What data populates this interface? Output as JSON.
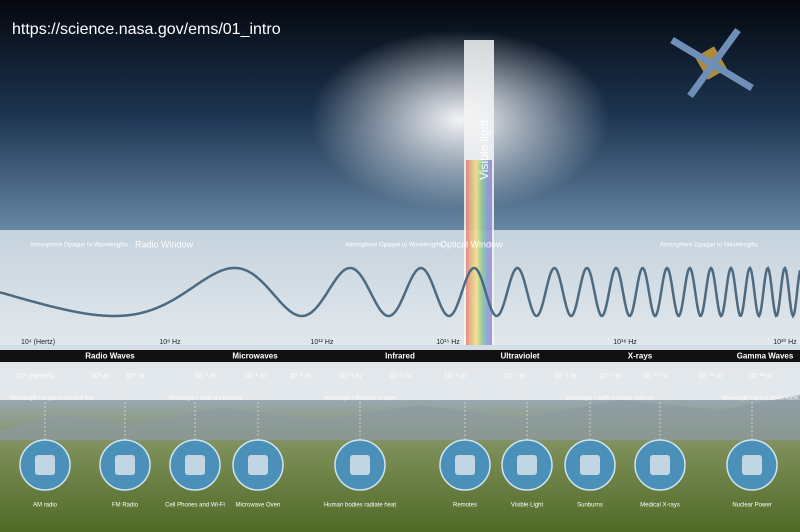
{
  "source_url": "https://science.nasa.gov/ems/01_intro",
  "visible_light_label": "Visible light",
  "windows": [
    "Atmosphere Opaque to Wavelengths",
    "Radio Window",
    "Atmosphere Opaque to Wavelengths",
    "Optical Window",
    "Atmosphere Opaque to Wavelengths"
  ],
  "frequencies": [
    "10⁴ (Hertz)",
    "10⁸ Hz",
    "10¹² Hz",
    "10¹⁵ Hz",
    "10¹⁸ Hz",
    "10²⁰ Hz"
  ],
  "bands": [
    "Radio Waves",
    "Microwaves",
    "Infrared",
    "Ultraviolet",
    "X-rays",
    "Gamma Waves"
  ],
  "wavelengths": [
    "10³ (meters)",
    "10¹ m",
    "10⁰ m",
    "10⁻¹ m",
    "10⁻² m",
    "10⁻³ m",
    "10⁻⁴ m",
    "10⁻⁵ m",
    "10⁻⁶ m",
    "10⁻⁷ m",
    "10⁻⁸ m",
    "10⁻⁹ m",
    "10⁻¹⁰ m",
    "10⁻¹¹ m",
    "10⁻¹² m"
  ],
  "wavelength_notes": [
    "Wavelength = length of a football field",
    "Wavelength = width of a baseball",
    "Wavelength = thickness of paper",
    "Wavelength = width of a water molecule",
    "Wavelength = size of atomic nuclei"
  ],
  "sources": [
    "AM radio",
    "FM Radio",
    "Cell Phones and Wi-Fi",
    "Microwave Oven",
    "Human bodies radiate heat",
    "Remotes",
    "Visible Light",
    "Sunburns",
    "Medical X-rays",
    "Nuclear Power"
  ]
}
